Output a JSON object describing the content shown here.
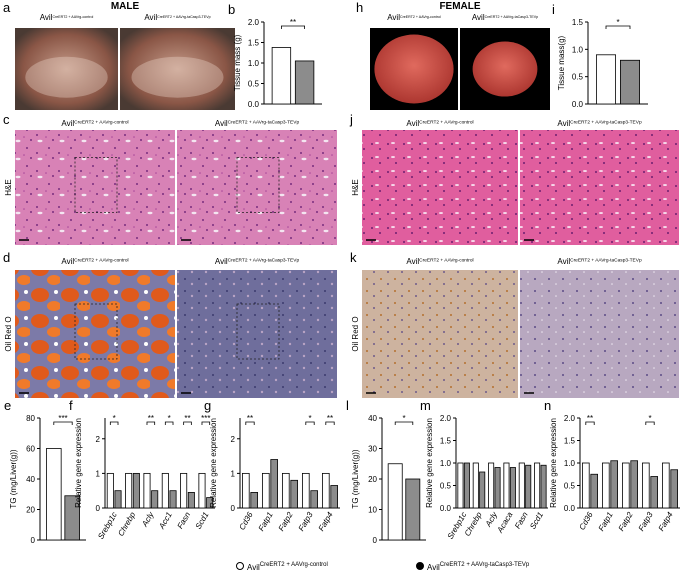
{
  "sections": [
    "MALE",
    "FEMALE"
  ],
  "image_panels": [
    {
      "label": "a",
      "headers": [
        {
          "main": "Avil",
          "sup": "CreERT2 + AAVrg-control"
        },
        {
          "main": "Avil",
          "sup": "CreERT2 + AAVrg-taCasp3-TEVp"
        }
      ]
    },
    {
      "label": "c",
      "row_label": "H&E",
      "headers": [
        {
          "main": "Avil",
          "sup": "CreERT2 + AAVrg-control"
        },
        {
          "main": "Avil",
          "sup": "CreERT2 + AAVrg-taCasp3-TEVp"
        }
      ]
    },
    {
      "label": "d",
      "row_label": "Oil Red O",
      "headers": [
        {
          "main": "Avil",
          "sup": "CreERT2 + AAVrg-control"
        },
        {
          "main": "Avil",
          "sup": "CreERT2 + AAVrg-taCasp3-TEVp"
        }
      ]
    },
    {
      "label": "h",
      "headers": [
        {
          "main": "Avil",
          "sup": "CreERT2 + AAVrg-control"
        },
        {
          "main": "Avil",
          "sup": "CreERT2 + AAVrg-taCasp3-TEVp"
        }
      ]
    },
    {
      "label": "j",
      "row_label": "H&E",
      "headers": [
        {
          "main": "Avil",
          "sup": "CreERT2 + AAVrg-control"
        },
        {
          "main": "Avil",
          "sup": "CreERT2 + AAVrg-taCasp3-TEVp"
        }
      ]
    },
    {
      "label": "k",
      "row_label": "Oil Red O",
      "headers": [
        {
          "main": "Avil",
          "sup": "CreERT2 + AAVrg-control"
        },
        {
          "main": "Avil",
          "sup": "CreERT2 + AAVrg-taCasp3-TEVp"
        }
      ]
    }
  ],
  "legend": [
    {
      "name": "Avil",
      "sup": "CreERT2 + AAVrg-control",
      "color": "#ffffff",
      "bar_color": "#ffffff"
    },
    {
      "name": "Avil",
      "sup": "CreERT2 + AAVrg-taCasp3-TEVp",
      "color": "#000000",
      "bar_color": "#8c8c8c"
    }
  ],
  "chart_data": [
    {
      "type": "bar",
      "label": "b",
      "y_label": "Tissue mass (g)",
      "ylim": [
        0,
        2
      ],
      "yticks": [
        {
          "value": 0,
          "label": "0.0"
        },
        {
          "value": 0.5,
          "label": "0.5"
        },
        {
          "value": 1,
          "label": "1.0"
        },
        {
          "value": 1.5,
          "label": "1.5"
        },
        {
          "value": 2,
          "label": "2.0"
        }
      ],
      "series": [
        {
          "values": [
            1.38
          ]
        },
        {
          "values": [
            1.05
          ]
        }
      ],
      "annotations": [
        "**"
      ]
    },
    {
      "type": "bar",
      "label": "i",
      "y_label": "Tissue mass(g)",
      "ylim": [
        0,
        1.5
      ],
      "yticks": [
        {
          "value": 0,
          "label": "0.0"
        },
        {
          "value": 0.5,
          "label": "0.5"
        },
        {
          "value": 1,
          "label": "1.0"
        },
        {
          "value": 1.5,
          "label": "1.5"
        }
      ],
      "series": [
        {
          "values": [
            0.9
          ]
        },
        {
          "values": [
            0.8
          ]
        }
      ],
      "annotations": [
        "*"
      ]
    },
    {
      "type": "bar",
      "label": "e",
      "y_label": "TG (mg/Liver(g))",
      "ylim": [
        0,
        80
      ],
      "yticks": [
        0,
        20,
        40,
        60,
        80
      ],
      "series": [
        {
          "values": [
            60
          ]
        },
        {
          "values": [
            29
          ]
        }
      ],
      "annotations": [
        "***"
      ]
    },
    {
      "type": "bar",
      "label": "f",
      "y_label": "Relative gene expression",
      "ylim": [
        0,
        2.6
      ],
      "yticks": [
        0,
        1,
        2
      ],
      "categories": [
        "Srebp1c",
        "Chrebp",
        "Acly",
        "Acc1",
        "Fasn",
        "Scd1"
      ],
      "series": [
        {
          "values": [
            1.0,
            1.0,
            1.0,
            1.0,
            1.0,
            1.0
          ]
        },
        {
          "values": [
            0.5,
            1.0,
            0.5,
            0.5,
            0.45,
            0.3
          ]
        }
      ],
      "annotations": [
        "*",
        null,
        "**",
        "*",
        "**",
        "***"
      ]
    },
    {
      "type": "bar",
      "label": "g",
      "y_label": "Relative gene expression",
      "ylim": [
        0,
        2.6
      ],
      "yticks": [
        0,
        1,
        2
      ],
      "categories": [
        "Cd36",
        "Fatp1",
        "Fatp2",
        "Fatp3",
        "Fatp4"
      ],
      "series": [
        {
          "values": [
            1.0,
            1.0,
            1.0,
            1.0,
            1.0
          ]
        },
        {
          "values": [
            0.45,
            1.4,
            0.8,
            0.5,
            0.65
          ]
        }
      ],
      "annotations": [
        "**",
        null,
        null,
        "*",
        "**"
      ]
    },
    {
      "type": "bar",
      "label": "l",
      "y_label": "TG (mg/Liver(g))",
      "ylim": [
        0,
        40
      ],
      "yticks": [
        0,
        10,
        20,
        30,
        40
      ],
      "series": [
        {
          "values": [
            25
          ]
        },
        {
          "values": [
            20
          ]
        }
      ],
      "annotations": [
        "*"
      ]
    },
    {
      "type": "bar",
      "label": "m",
      "y_label": "Relative gene expression",
      "ylim": [
        0,
        2
      ],
      "yticks": [
        {
          "value": 0,
          "label": "0.0"
        },
        {
          "value": 0.5,
          "label": "0.5"
        },
        {
          "value": 1,
          "label": "1.0"
        },
        {
          "value": 1.5,
          "label": "1.5"
        },
        {
          "value": 2,
          "label": "2.0"
        }
      ],
      "categories": [
        "Srebp1c",
        "Chrebp",
        "Acly",
        "Acaca",
        "Fasn",
        "Scd1"
      ],
      "series": [
        {
          "values": [
            1.0,
            1.0,
            1.0,
            1.0,
            1.0,
            1.0
          ]
        },
        {
          "values": [
            1.0,
            0.8,
            0.9,
            0.9,
            0.95,
            0.95
          ]
        }
      ],
      "annotations": [
        null,
        null,
        null,
        null,
        null,
        null
      ]
    },
    {
      "type": "bar",
      "label": "n",
      "y_label": "Relative gene expression",
      "ylim": [
        0,
        2
      ],
      "yticks": [
        {
          "value": 0,
          "label": "0.0"
        },
        {
          "value": 0.5,
          "label": "0.5"
        },
        {
          "value": 1,
          "label": "1.0"
        },
        {
          "value": 1.5,
          "label": "1.5"
        },
        {
          "value": 2,
          "label": "2.0"
        }
      ],
      "categories": [
        "Cd36",
        "Fatp1",
        "Fatp2",
        "Fatp3",
        "Fatp4"
      ],
      "series": [
        {
          "values": [
            1.0,
            1.0,
            1.0,
            1.0,
            1.0
          ]
        },
        {
          "values": [
            0.75,
            1.05,
            1.05,
            0.7,
            0.85
          ]
        }
      ],
      "annotations": [
        "**",
        null,
        null,
        "*",
        null
      ]
    }
  ]
}
